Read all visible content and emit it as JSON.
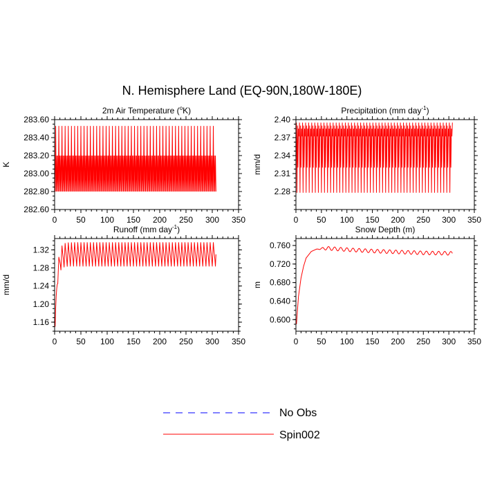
{
  "figure": {
    "title": "N. Hemisphere Land (EQ-90N,180W-180E)"
  },
  "legend": {
    "entries": [
      {
        "label": "No Obs",
        "color": "#0000ff",
        "style": "dashed"
      },
      {
        "label": "Spin002",
        "color": "#ff0000",
        "style": "solid"
      }
    ]
  },
  "chart_data": [
    {
      "type": "line",
      "title_main": "2m Air Temperature (",
      "title_sup": "o",
      "title_end": "K)",
      "xlabel": "",
      "ylabel": "K",
      "xlim": [
        0,
        350
      ],
      "ylim": [
        282.6,
        283.6
      ],
      "xticks": [
        0,
        50,
        100,
        150,
        200,
        250,
        300,
        350
      ],
      "yticks": [
        282.6,
        282.8,
        283.0,
        283.2,
        283.4,
        283.6
      ],
      "ytick_labels": [
        "282.60",
        "282.80",
        "283.00",
        "283.20",
        "283.40",
        "283.60"
      ],
      "series": [
        {
          "name": "Spin002",
          "color": "#ff0000",
          "x_start": 1,
          "x_end": 307,
          "period_months": 6,
          "cycle_values": [
            282.8,
            283.53,
            282.8,
            283.2,
            282.8,
            283.2
          ],
          "description_trend": "none"
        }
      ]
    },
    {
      "type": "line",
      "title_main": "Precipitation (mm day",
      "title_sup": "-1",
      "title_end": ")",
      "xlabel": "",
      "ylabel": "mm/d",
      "xlim": [
        0,
        350
      ],
      "ylim": [
        2.25,
        2.4
      ],
      "xticks": [
        0,
        50,
        100,
        150,
        200,
        250,
        300,
        350
      ],
      "yticks": [
        2.28,
        2.31,
        2.34,
        2.37,
        2.4
      ],
      "ytick_labels": [
        "2.28",
        "2.31",
        "2.34",
        "2.37",
        "2.40"
      ],
      "series": [
        {
          "name": "Spin002",
          "color": "#ff0000",
          "x_start": 1,
          "x_end": 307,
          "period_months": 6,
          "cycle_values": [
            2.395,
            2.278,
            2.39,
            2.32,
            2.385,
            2.372
          ],
          "description_trend": "none"
        }
      ]
    },
    {
      "type": "line",
      "title_main": "Runoff (mm day",
      "title_sup": "-1",
      "title_end": ")",
      "xlabel": "",
      "ylabel": "mm/d",
      "xlim": [
        0,
        350
      ],
      "ylim": [
        1.14,
        1.345
      ],
      "xticks": [
        0,
        50,
        100,
        150,
        200,
        250,
        300,
        350
      ],
      "yticks": [
        1.16,
        1.2,
        1.24,
        1.28,
        1.32
      ],
      "ytick_labels": [
        "1.16",
        "1.20",
        "1.24",
        "1.28",
        "1.32"
      ],
      "series": [
        {
          "name": "Spin002",
          "color": "#ff0000",
          "x_start": 1,
          "x_end": 307,
          "start_value": 1.15,
          "plateau_center": 1.31,
          "spinup_months": 12,
          "cycle_amplitude": 0.022,
          "period_months": 6,
          "description_trend": "rapid rise then oscillation"
        }
      ]
    },
    {
      "type": "line",
      "title_main": "Snow Depth (m)",
      "title_sup": "",
      "title_end": "",
      "xlabel": "",
      "ylabel": "m",
      "xlim": [
        0,
        350
      ],
      "ylim": [
        0.575,
        0.775
      ],
      "xticks": [
        0,
        50,
        100,
        150,
        200,
        250,
        300,
        350
      ],
      "yticks": [
        0.6,
        0.64,
        0.68,
        0.72,
        0.76
      ],
      "ytick_labels": [
        "0.600",
        "0.640",
        "0.680",
        "0.720",
        "0.760"
      ],
      "series": [
        {
          "name": "Spin002",
          "color": "#ff0000",
          "x_start": 1,
          "x_end": 307,
          "curve_points": [
            [
              1,
              0.59
            ],
            [
              5,
              0.65
            ],
            [
              10,
              0.69
            ],
            [
              15,
              0.715
            ],
            [
              20,
              0.733
            ],
            [
              30,
              0.747
            ],
            [
              40,
              0.752
            ],
            [
              60,
              0.754
            ],
            [
              100,
              0.751
            ],
            [
              150,
              0.748
            ],
            [
              200,
              0.746
            ],
            [
              250,
              0.744
            ],
            [
              307,
              0.743
            ]
          ],
          "cycle_amplitude": 0.004,
          "period_months": 12,
          "description_trend": "saturating growth then small oscillation"
        }
      ]
    }
  ]
}
